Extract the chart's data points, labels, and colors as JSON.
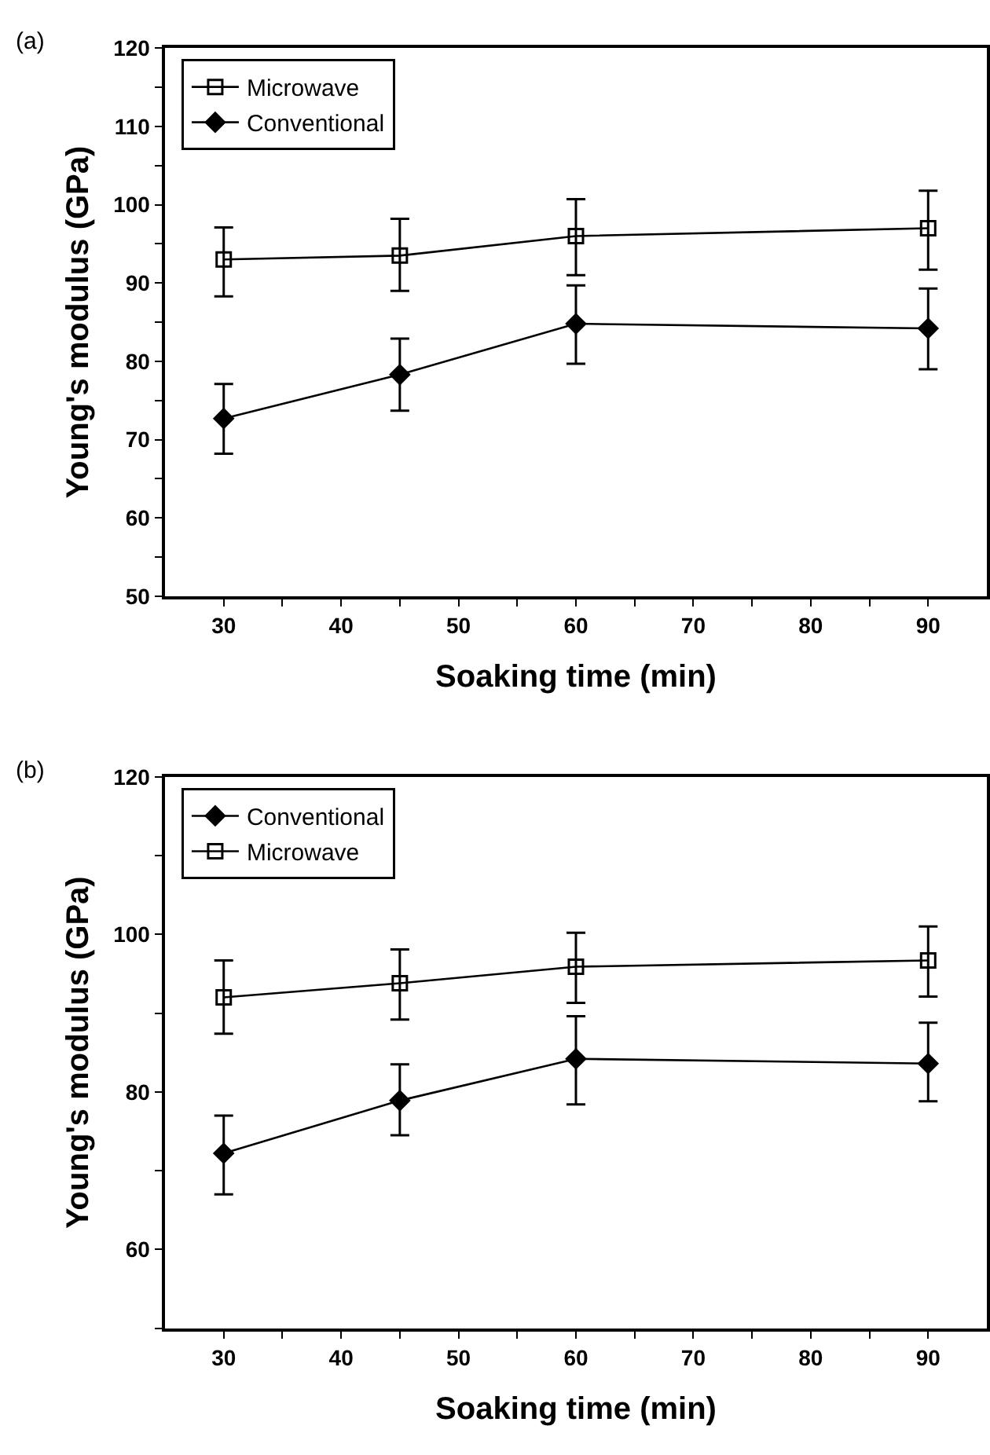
{
  "chart_data": [
    {
      "type": "line",
      "title": "(a)",
      "xlabel": "Soaking time (min)",
      "ylabel": "Young's modulus (GPa)",
      "x": [
        30,
        45,
        60,
        90
      ],
      "series": [
        {
          "name": "Microwave",
          "color": "#000000",
          "marker": "square",
          "values": [
            93,
            93.5,
            96,
            97
          ],
          "errors": [
            [
              88.3,
              97.1
            ],
            [
              89,
              98.2
            ],
            [
              91,
              100.7
            ],
            [
              91.7,
              101.8
            ]
          ]
        },
        {
          "name": "Conventional",
          "color": "#000000",
          "marker": "diamond",
          "values": [
            72.7,
            78.3,
            84.8,
            84.2
          ],
          "errors": [
            [
              68.2,
              77.1
            ],
            [
              73.7,
              82.9
            ],
            [
              79.7,
              89.7
            ],
            [
              79,
              89.3
            ]
          ]
        }
      ],
      "xlim": [
        25,
        95
      ],
      "ylim": [
        50,
        120
      ],
      "xticks": [
        30,
        {
          "value": 35,
          "label": null
        },
        40,
        {
          "value": 45,
          "label": null
        },
        50,
        {
          "value": 55,
          "label": null
        },
        60,
        {
          "value": 65,
          "label": null
        },
        70,
        {
          "value": 75,
          "label": null
        },
        80,
        {
          "value": 85,
          "label": null
        },
        90
      ],
      "yticks": [
        50,
        {
          "value": 55,
          "label": null
        },
        60,
        {
          "value": 65,
          "label": null
        },
        70,
        {
          "value": 75,
          "label": null
        },
        80,
        {
          "value": 85,
          "label": null
        },
        90,
        {
          "value": 95,
          "label": null
        },
        100,
        {
          "value": 105,
          "label": null
        },
        110,
        {
          "value": 115,
          "label": null
        },
        120
      ],
      "legend": "top left",
      "line_style": "solid"
    },
    {
      "type": "line",
      "title": "(b)",
      "xlabel": "Soaking time (min)",
      "ylabel": "Young's modulus (GPa)",
      "x": [
        30,
        45,
        60,
        90
      ],
      "series": [
        {
          "name": "Conventional",
          "color": "#000000",
          "marker": "diamond",
          "values": [
            72.2,
            78.9,
            84.2,
            83.6
          ],
          "errors": [
            [
              67,
              77
            ],
            [
              74.5,
              83.5
            ],
            [
              78.4,
              89.6
            ],
            [
              78.8,
              88.8
            ]
          ]
        },
        {
          "name": "Microwave",
          "color": "#000000",
          "marker": "square",
          "values": [
            92,
            93.8,
            95.9,
            96.7
          ],
          "errors": [
            [
              87.4,
              96.7
            ],
            [
              89.2,
              98.1
            ],
            [
              91.3,
              100.2
            ],
            [
              92.1,
              101
            ]
          ]
        }
      ],
      "xlim": [
        25,
        95
      ],
      "ylim": [
        50,
        120
      ],
      "xticks": [
        30,
        {
          "value": 35,
          "label": null
        },
        40,
        {
          "value": 45,
          "label": null
        },
        50,
        {
          "value": 55,
          "label": null
        },
        60,
        {
          "value": 65,
          "label": null
        },
        70,
        {
          "value": 75,
          "label": null
        },
        80,
        {
          "value": 85,
          "label": null
        },
        90
      ],
      "yticks": [
        {
          "value": 50,
          "label": null
        },
        60,
        {
          "value": 70,
          "label": null
        },
        80,
        {
          "value": 90,
          "label": null
        },
        100,
        {
          "value": 110,
          "label": null
        },
        120
      ],
      "legend": "top left",
      "line_style": "solid"
    }
  ]
}
